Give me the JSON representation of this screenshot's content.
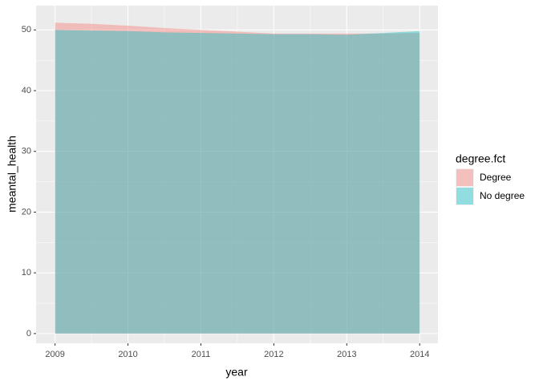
{
  "chart_data": {
    "type": "area",
    "x_label": "year",
    "y_label": "meantal_health",
    "x": [
      2009,
      2009.5,
      2010,
      2010.5,
      2011,
      2011.5,
      2012,
      2012.5,
      2013,
      2013.5,
      2014
    ],
    "series": [
      {
        "name": "Degree",
        "color": "#F8766D",
        "values": [
          51.2,
          51.0,
          50.7,
          50.3,
          50.0,
          49.7,
          49.4,
          49.4,
          49.4,
          49.4,
          49.5
        ]
      },
      {
        "name": "No degree",
        "color": "#00BFC4",
        "values": [
          50.0,
          49.9,
          49.8,
          49.6,
          49.5,
          49.4,
          49.3,
          49.3,
          49.2,
          49.5,
          49.8
        ]
      }
    ],
    "legend_title": "degree.fct",
    "xlim": [
      2008.74,
      2014.25
    ],
    "xticks": [
      2009,
      2010,
      2011,
      2012,
      2013,
      2014
    ],
    "ylim": [
      -1.6,
      54
    ],
    "yticks": [
      0,
      10,
      20,
      30,
      40,
      50
    ],
    "grid": true,
    "legend_position": "right",
    "opacity": 0.4
  }
}
